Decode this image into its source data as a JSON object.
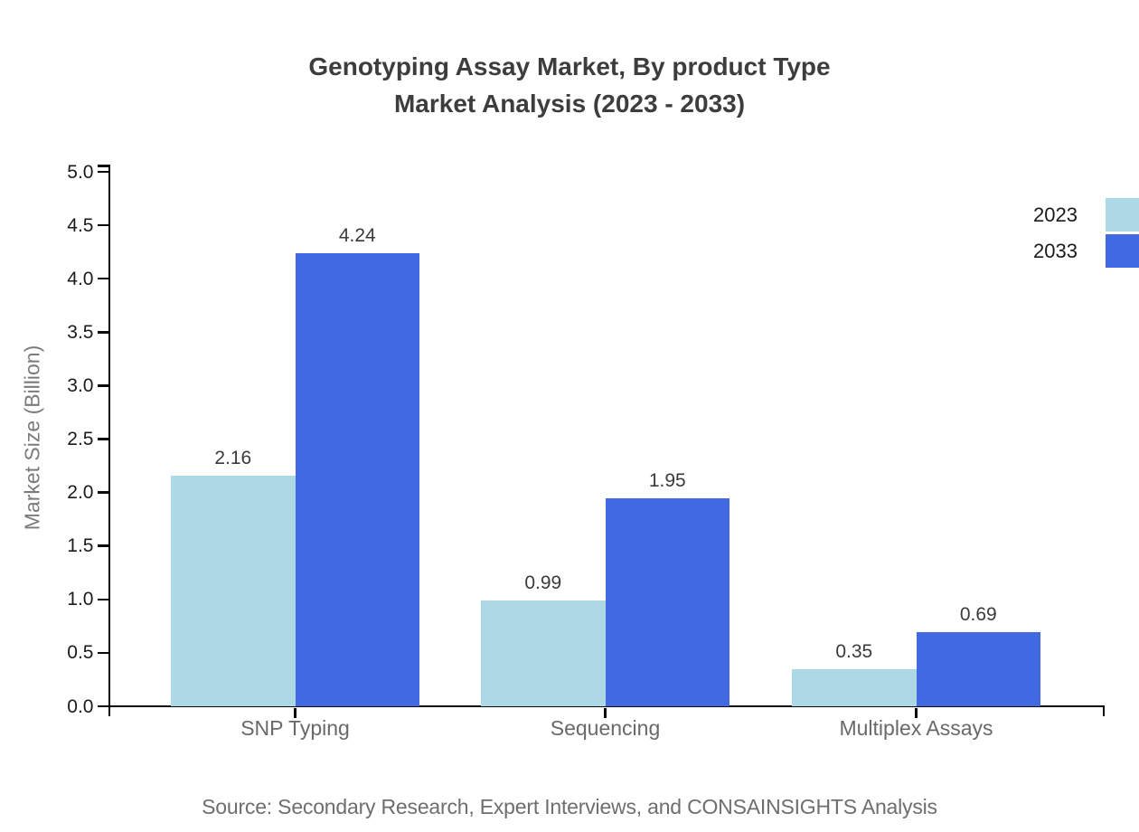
{
  "title": {
    "line1": "Genotyping Assay Market, By product Type",
    "line2": "Market Analysis (2023 - 2033)"
  },
  "source": "Source: Secondary Research, Expert Interviews, and CONSAINSIGHTS Analysis",
  "chart_data": {
    "type": "bar",
    "categories": [
      "SNP Typing",
      "Sequencing",
      "Multiplex Assays"
    ],
    "series": [
      {
        "name": "2023",
        "color": "#ADD8E6",
        "values": [
          2.16,
          0.99,
          0.35
        ]
      },
      {
        "name": "2033",
        "color": "#4169E1",
        "values": [
          4.24,
          1.95,
          0.69
        ]
      }
    ],
    "title": "Genotyping Assay Market, By product Type Market Analysis (2023 - 2033)",
    "xlabel": "",
    "ylabel": "Market Size (Billion)",
    "ylim": [
      0.0,
      5.0
    ],
    "ytick_step": 0.5,
    "ytick_decimals": 1,
    "value_label_decimals": 2,
    "grid": false,
    "legend_position": "top-right",
    "axis_color": "#0a0a0a"
  }
}
